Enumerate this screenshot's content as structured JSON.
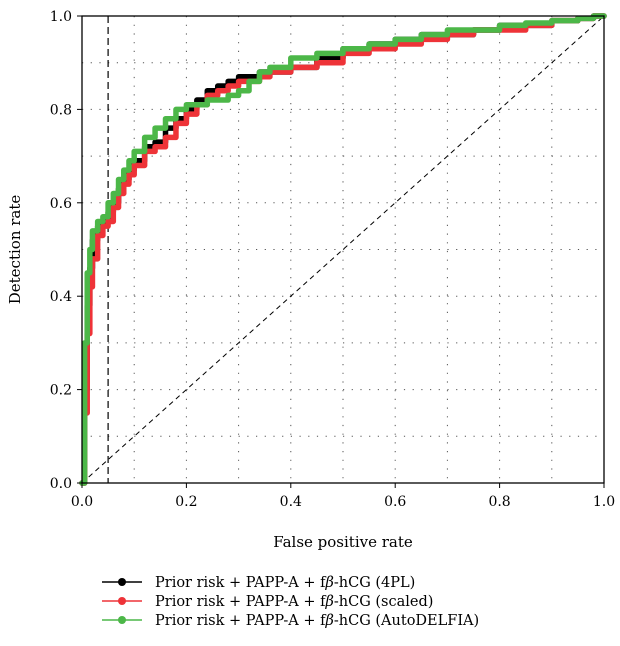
{
  "chart_data": {
    "type": "line",
    "title": "",
    "xlabel": "False positive rate",
    "ylabel": "Detection rate",
    "xlim": [
      0,
      1
    ],
    "ylim": [
      0,
      1
    ],
    "xticks": [
      "0.0",
      "0.2",
      "0.4",
      "0.6",
      "0.8",
      "1.0"
    ],
    "yticks": [
      "0.0",
      "0.2",
      "0.4",
      "0.6",
      "0.8",
      "1.0"
    ],
    "grid": "dotted",
    "legend_position": "bottom",
    "reference_lines": {
      "diagonal": true,
      "vertical_x": 0.05
    },
    "series": [
      {
        "name": "Prior risk + PAPP-A + fβ-hCG (4PL)",
        "legend_prefix": "Prior risk + PAPP-A + f",
        "legend_beta": "β",
        "legend_suffix": "-hCG (4PL)",
        "color": "#000000",
        "x": [
          0,
          0.005,
          0.01,
          0.015,
          0.02,
          0.03,
          0.04,
          0.05,
          0.06,
          0.07,
          0.08,
          0.09,
          0.1,
          0.12,
          0.14,
          0.16,
          0.18,
          0.2,
          0.22,
          0.24,
          0.26,
          0.28,
          0.3,
          0.32,
          0.34,
          0.36,
          0.4,
          0.45,
          0.5,
          0.55,
          0.6,
          0.65,
          0.7,
          0.75,
          0.8,
          0.85,
          0.9,
          0.95,
          0.98,
          1.0
        ],
        "y": [
          0,
          0.2,
          0.38,
          0.46,
          0.52,
          0.55,
          0.56,
          0.58,
          0.6,
          0.63,
          0.65,
          0.67,
          0.69,
          0.72,
          0.73,
          0.76,
          0.78,
          0.8,
          0.82,
          0.84,
          0.85,
          0.86,
          0.87,
          0.87,
          0.88,
          0.88,
          0.89,
          0.91,
          0.93,
          0.94,
          0.95,
          0.96,
          0.96,
          0.97,
          0.98,
          0.98,
          0.99,
          0.995,
          1.0,
          1.0
        ]
      },
      {
        "name": "Prior risk + PAPP-A + fβ-hCG (scaled)",
        "legend_prefix": "Prior risk + PAPP-A + f",
        "legend_beta": "β",
        "legend_suffix": "-hCG (scaled)",
        "color": "#ee3338",
        "x": [
          0,
          0.005,
          0.01,
          0.015,
          0.02,
          0.03,
          0.04,
          0.05,
          0.06,
          0.07,
          0.08,
          0.09,
          0.1,
          0.12,
          0.14,
          0.16,
          0.18,
          0.2,
          0.22,
          0.24,
          0.26,
          0.28,
          0.3,
          0.32,
          0.34,
          0.36,
          0.4,
          0.45,
          0.5,
          0.55,
          0.6,
          0.65,
          0.7,
          0.75,
          0.8,
          0.85,
          0.9,
          0.95,
          0.98,
          1.0
        ],
        "y": [
          0,
          0.15,
          0.32,
          0.42,
          0.48,
          0.53,
          0.55,
          0.56,
          0.59,
          0.62,
          0.64,
          0.66,
          0.68,
          0.71,
          0.72,
          0.74,
          0.77,
          0.79,
          0.81,
          0.83,
          0.84,
          0.85,
          0.86,
          0.86,
          0.87,
          0.88,
          0.89,
          0.9,
          0.92,
          0.93,
          0.94,
          0.95,
          0.96,
          0.97,
          0.97,
          0.98,
          0.99,
          0.995,
          1.0,
          1.0
        ]
      },
      {
        "name": "Prior risk + PAPP-A + fβ-hCG (AutoDELFIA)",
        "legend_prefix": "Prior risk + PAPP-A + f",
        "legend_beta": "β",
        "legend_suffix": "-hCG (AutoDELFIA)",
        "color": "#4cb748",
        "x": [
          0,
          0.005,
          0.01,
          0.015,
          0.02,
          0.03,
          0.04,
          0.05,
          0.06,
          0.07,
          0.08,
          0.09,
          0.1,
          0.12,
          0.14,
          0.16,
          0.18,
          0.2,
          0.22,
          0.24,
          0.26,
          0.28,
          0.3,
          0.32,
          0.34,
          0.36,
          0.4,
          0.45,
          0.5,
          0.55,
          0.6,
          0.65,
          0.7,
          0.75,
          0.8,
          0.85,
          0.9,
          0.95,
          0.98,
          1.0
        ],
        "y": [
          0,
          0.3,
          0.45,
          0.5,
          0.54,
          0.56,
          0.57,
          0.6,
          0.62,
          0.65,
          0.67,
          0.69,
          0.71,
          0.74,
          0.76,
          0.78,
          0.8,
          0.81,
          0.81,
          0.82,
          0.82,
          0.83,
          0.84,
          0.86,
          0.88,
          0.89,
          0.91,
          0.92,
          0.93,
          0.94,
          0.95,
          0.96,
          0.97,
          0.97,
          0.98,
          0.985,
          0.99,
          0.995,
          1.0,
          1.0
        ]
      }
    ]
  }
}
